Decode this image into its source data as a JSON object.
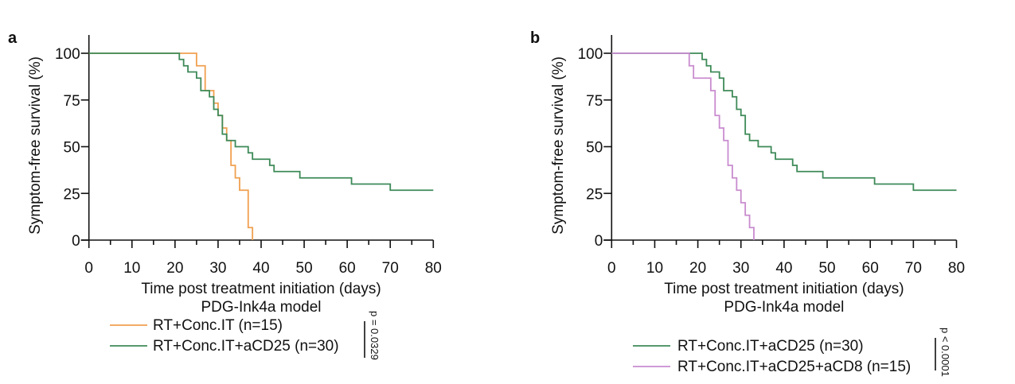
{
  "chart_data": [
    {
      "type": "line",
      "subtype": "kaplan-meier step",
      "panel_label": "a",
      "title": "",
      "xlabel": "Time post treatment initiation (days)",
      "xlabel2": "PDG-Ink4a model",
      "ylabel": "Symptom-free survival (%)",
      "xlim": [
        0,
        80
      ],
      "ylim": [
        0,
        100
      ],
      "xticks": [
        0,
        10,
        20,
        30,
        40,
        50,
        60,
        70,
        80
      ],
      "xticks_minor": [
        5,
        15,
        25,
        35,
        45,
        55,
        65,
        75
      ],
      "yticks": [
        0,
        25,
        50,
        75,
        100
      ],
      "grid": false,
      "legend_position": "bottom-left",
      "series": [
        {
          "name": "RT+Conc.IT (n=15)",
          "color": "#F0A050",
          "x": [
            0,
            25,
            27,
            29,
            30,
            31,
            32,
            33,
            34,
            35,
            37,
            38
          ],
          "y": [
            100,
            93.3,
            80,
            73.3,
            66.7,
            60,
            53.3,
            40,
            33.3,
            26.7,
            6.7,
            0
          ]
        },
        {
          "name": "RT+Conc.IT+aCD25 (n=30)",
          "color": "#3E8A58",
          "x": [
            0,
            21,
            22,
            23,
            25,
            26,
            28,
            29,
            30,
            31,
            32,
            34,
            37,
            38,
            42,
            43,
            49,
            61,
            70,
            80
          ],
          "y": [
            100,
            96.7,
            93.3,
            90,
            86.7,
            80,
            76.7,
            70,
            66.7,
            56.7,
            53.3,
            50,
            46.7,
            43.3,
            40,
            36.7,
            33.3,
            30,
            26.7,
            26.7
          ]
        }
      ],
      "annotation": "p = 0.0329"
    },
    {
      "type": "line",
      "subtype": "kaplan-meier step",
      "panel_label": "b",
      "title": "",
      "xlabel": "Time post treatment initiation (days)",
      "xlabel2": "PDG-Ink4a model",
      "ylabel": "Symptom-free survival (%)",
      "xlim": [
        0,
        80
      ],
      "ylim": [
        0,
        100
      ],
      "xticks": [
        0,
        10,
        20,
        30,
        40,
        50,
        60,
        70,
        80
      ],
      "xticks_minor": [
        5,
        15,
        25,
        35,
        45,
        55,
        65,
        75
      ],
      "yticks": [
        0,
        25,
        50,
        75,
        100
      ],
      "grid": false,
      "legend_position": "bottom-right",
      "series": [
        {
          "name": "RT+Conc.IT+aCD25 (n=30)",
          "color": "#3E8A58",
          "x": [
            0,
            21,
            22,
            23,
            25,
            26,
            28,
            29,
            30,
            31,
            32,
            34,
            37,
            38,
            42,
            43,
            49,
            61,
            70,
            80
          ],
          "y": [
            100,
            96.7,
            93.3,
            90,
            86.7,
            80,
            76.7,
            70,
            66.7,
            56.7,
            53.3,
            50,
            46.7,
            43.3,
            40,
            36.7,
            33.3,
            30,
            26.7,
            26.7
          ]
        },
        {
          "name": "RT+Conc.IT+aCD25+aCD8 (n=15)",
          "color": "#C98CCF",
          "x": [
            0,
            18,
            19,
            23,
            24,
            25,
            26,
            27,
            28,
            29,
            30,
            31,
            32,
            33
          ],
          "y": [
            100,
            93.3,
            86.7,
            80,
            66.7,
            60,
            53.3,
            40,
            33.3,
            26.7,
            20,
            13.3,
            6.7,
            0
          ]
        }
      ],
      "annotation": "p < 0.0001"
    }
  ]
}
